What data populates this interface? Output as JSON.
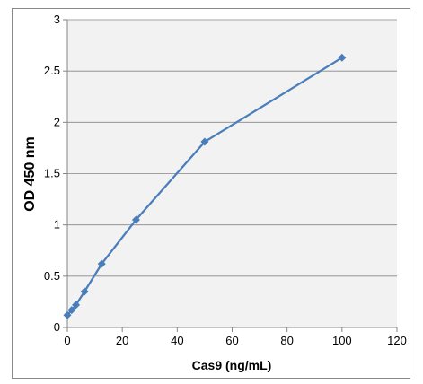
{
  "chart_data": {
    "type": "line",
    "title": "",
    "xlabel": "Cas9 (ng/mL)",
    "ylabel": "OD 450 nm",
    "xlim": [
      0,
      120
    ],
    "ylim": [
      0,
      3
    ],
    "x_ticks": [
      "0",
      "20",
      "40",
      "60",
      "80",
      "100",
      "120"
    ],
    "y_ticks": [
      "0",
      "0.5",
      "1",
      "1.5",
      "2",
      "2.5",
      "3"
    ],
    "grid": "horizontal",
    "legend": "none",
    "plot_background": "#f2f2f2",
    "series": [
      {
        "color": "#4a7ebb",
        "marker": "diamond",
        "x": [
          0,
          1.56,
          3.13,
          6.25,
          12.5,
          25,
          50,
          100
        ],
        "y": [
          0.12,
          0.17,
          0.22,
          0.35,
          0.62,
          1.05,
          1.81,
          2.63
        ]
      }
    ]
  }
}
